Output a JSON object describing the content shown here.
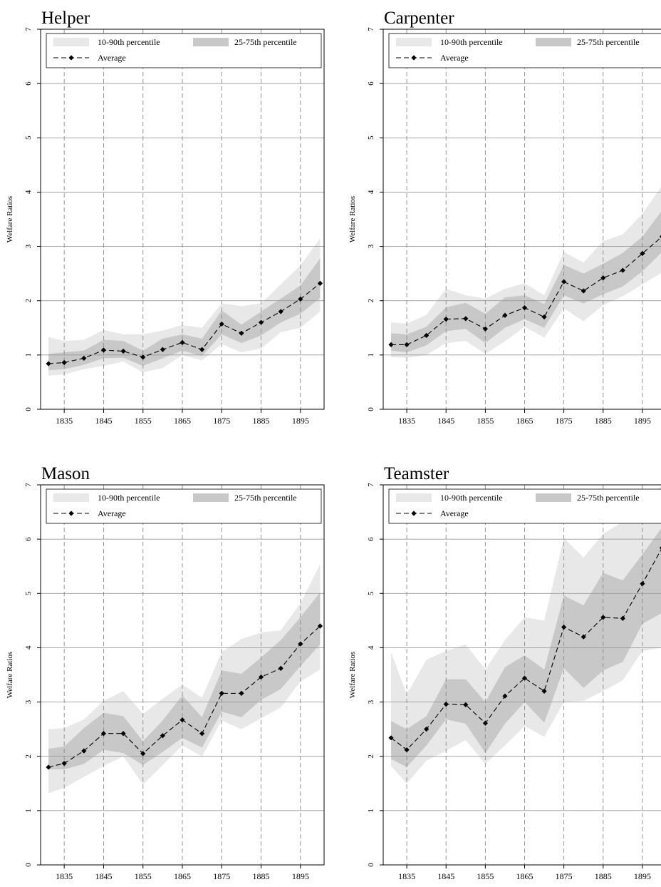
{
  "page": {
    "legend_labels": {
      "p10_90": "10-90th percentile",
      "p25_75": "25-75th percentile",
      "average": "Average"
    },
    "colors": {
      "p10_90": "#e8e8e8",
      "p25_75": "#c8c8c8",
      "average": "#000000",
      "grid": "#999999",
      "vline": "#8a8a8a"
    }
  },
  "chart_data": [
    {
      "type": "area",
      "title": "Helper",
      "ylabel": "Welfare Ratios",
      "xlabel": "",
      "ylim": [
        0,
        7
      ],
      "yticks": [
        "0",
        "1",
        "2",
        "3",
        "4",
        "5",
        "6",
        "7"
      ],
      "xticks": [
        "1835",
        "1845",
        "1855",
        "1865",
        "1875",
        "1885",
        "1895"
      ],
      "grid": "horizontal solid at y ticks; vertical dashed at x ticks",
      "legend_position": "top",
      "x": [
        1831,
        1835,
        1840,
        1845,
        1850,
        1855,
        1860,
        1865,
        1870,
        1875,
        1880,
        1885,
        1890,
        1895,
        1900
      ],
      "series": [
        {
          "name": "10-90th percentile",
          "lower": [
            0.62,
            0.64,
            0.74,
            0.8,
            0.88,
            0.68,
            0.76,
            1.0,
            0.9,
            1.2,
            1.05,
            1.12,
            1.42,
            1.5,
            1.8
          ],
          "upper": [
            1.33,
            1.26,
            1.28,
            1.46,
            1.38,
            1.38,
            1.45,
            1.55,
            1.5,
            1.95,
            1.9,
            1.95,
            2.3,
            2.65,
            3.15
          ]
        },
        {
          "name": "25-75th percentile",
          "lower": [
            0.72,
            0.74,
            0.82,
            0.94,
            0.95,
            0.8,
            0.94,
            1.08,
            0.98,
            1.38,
            1.22,
            1.36,
            1.6,
            1.76,
            2.05
          ],
          "upper": [
            1.02,
            1.05,
            1.08,
            1.28,
            1.26,
            1.08,
            1.3,
            1.38,
            1.3,
            1.82,
            1.56,
            1.8,
            2.04,
            2.28,
            2.78
          ]
        },
        {
          "name": "Average",
          "values": [
            0.84,
            0.86,
            0.94,
            1.09,
            1.07,
            0.96,
            1.1,
            1.23,
            1.1,
            1.57,
            1.4,
            1.6,
            1.8,
            2.03,
            2.32
          ]
        }
      ]
    },
    {
      "type": "area",
      "title": "Carpenter",
      "ylabel": "Welfare Ratios",
      "xlabel": "",
      "ylim": [
        0,
        7
      ],
      "yticks": [
        "0",
        "1",
        "2",
        "3",
        "4",
        "5",
        "6",
        "7"
      ],
      "xticks": [
        "1835",
        "1845",
        "1855",
        "1865",
        "1875",
        "1885",
        "1895"
      ],
      "grid": "horizontal solid at y ticks; vertical dashed at x ticks",
      "legend_position": "top",
      "x": [
        1831,
        1835,
        1840,
        1845,
        1850,
        1855,
        1860,
        1865,
        1870,
        1875,
        1880,
        1885,
        1890,
        1895,
        1900
      ],
      "series": [
        {
          "name": "10-90th percentile",
          "lower": [
            0.96,
            0.95,
            1.0,
            1.22,
            1.26,
            1.02,
            1.25,
            1.52,
            1.32,
            1.86,
            1.62,
            1.92,
            2.08,
            2.3,
            2.52
          ],
          "upper": [
            1.6,
            1.58,
            1.74,
            2.22,
            2.1,
            2.04,
            2.22,
            2.32,
            2.1,
            2.9,
            2.7,
            3.1,
            3.22,
            3.6,
            4.12
          ]
        },
        {
          "name": "25-75th percentile",
          "lower": [
            1.08,
            1.05,
            1.18,
            1.44,
            1.48,
            1.22,
            1.5,
            1.66,
            1.5,
            2.1,
            1.95,
            2.12,
            2.26,
            2.54,
            2.9
          ],
          "upper": [
            1.4,
            1.38,
            1.52,
            1.88,
            1.96,
            1.76,
            2.06,
            2.1,
            1.94,
            2.66,
            2.5,
            2.68,
            2.88,
            3.18,
            3.66
          ]
        },
        {
          "name": "Average",
          "values": [
            1.19,
            1.19,
            1.36,
            1.66,
            1.67,
            1.48,
            1.73,
            1.87,
            1.7,
            2.35,
            2.18,
            2.42,
            2.56,
            2.87,
            3.18
          ]
        }
      ]
    },
    {
      "type": "area",
      "title": "Mason",
      "ylabel": "Welfare Ratios",
      "xlabel": "",
      "ylim": [
        0,
        7
      ],
      "yticks": [
        "0",
        "1",
        "2",
        "3",
        "4",
        "5",
        "6",
        "7"
      ],
      "xticks": [
        "1835",
        "1845",
        "1855",
        "1865",
        "1875",
        "1885",
        "1895"
      ],
      "grid": "horizontal solid at y ticks; vertical dashed at x ticks",
      "legend_position": "top",
      "x": [
        1831,
        1835,
        1840,
        1845,
        1850,
        1855,
        1860,
        1865,
        1870,
        1875,
        1880,
        1885,
        1890,
        1895,
        1900
      ],
      "series": [
        {
          "name": "10-90th percentile",
          "lower": [
            1.32,
            1.42,
            1.62,
            1.82,
            2.0,
            1.48,
            1.84,
            2.2,
            2.0,
            2.66,
            2.5,
            2.7,
            2.9,
            3.38,
            3.6
          ],
          "upper": [
            2.5,
            2.52,
            2.68,
            3.02,
            3.2,
            2.78,
            3.06,
            3.32,
            3.08,
            3.92,
            4.16,
            4.28,
            4.32,
            4.82,
            5.54
          ]
        },
        {
          "name": "25-75th percentile",
          "lower": [
            1.76,
            1.76,
            1.86,
            2.12,
            2.06,
            1.84,
            2.08,
            2.34,
            2.16,
            2.82,
            2.72,
            3.04,
            3.24,
            3.66,
            4.06
          ],
          "upper": [
            2.14,
            2.18,
            2.52,
            2.8,
            2.74,
            2.28,
            2.66,
            3.12,
            2.72,
            3.58,
            3.52,
            3.82,
            4.14,
            4.56,
            5.02
          ]
        },
        {
          "name": "Average",
          "values": [
            1.8,
            1.87,
            2.1,
            2.42,
            2.42,
            2.05,
            2.38,
            2.67,
            2.42,
            3.16,
            3.16,
            3.46,
            3.62,
            4.07,
            4.4
          ]
        }
      ]
    },
    {
      "type": "area",
      "title": "Teamster",
      "ylabel": "Welfare Ratios",
      "xlabel": "",
      "ylim": [
        0,
        7
      ],
      "yticks": [
        "0",
        "1",
        "2",
        "3",
        "4",
        "5",
        "6",
        "7"
      ],
      "xticks": [
        "1835",
        "1845",
        "1855",
        "1865",
        "1875",
        "1885",
        "1895"
      ],
      "grid": "horizontal solid at y ticks; vertical dashed at x ticks",
      "legend_position": "top",
      "x": [
        1831,
        1835,
        1840,
        1845,
        1850,
        1855,
        1860,
        1865,
        1870,
        1875,
        1880,
        1885,
        1890,
        1895,
        1900
      ],
      "series": [
        {
          "name": "10-90th percentile",
          "lower": [
            1.82,
            1.5,
            1.92,
            2.1,
            2.3,
            1.86,
            2.2,
            2.56,
            2.36,
            3.0,
            3.02,
            3.2,
            3.4,
            3.94,
            4.0
          ],
          "upper": [
            3.92,
            3.14,
            3.78,
            3.94,
            4.06,
            3.6,
            4.14,
            4.56,
            4.5,
            6.02,
            5.66,
            6.1,
            6.32,
            6.6,
            7.0
          ]
        },
        {
          "name": "25-75th percentile",
          "lower": [
            1.95,
            1.8,
            2.2,
            2.68,
            2.6,
            2.06,
            2.6,
            3.0,
            2.62,
            3.62,
            3.26,
            3.58,
            3.74,
            4.44,
            4.64
          ],
          "upper": [
            2.65,
            2.5,
            2.74,
            3.42,
            3.42,
            3.0,
            3.64,
            3.86,
            3.6,
            4.96,
            4.78,
            5.38,
            5.24,
            5.72,
            6.22
          ]
        },
        {
          "name": "Average",
          "values": [
            2.34,
            2.12,
            2.5,
            2.96,
            2.95,
            2.61,
            3.11,
            3.44,
            3.2,
            4.38,
            4.2,
            4.56,
            4.54,
            5.18,
            5.84
          ]
        }
      ]
    }
  ]
}
